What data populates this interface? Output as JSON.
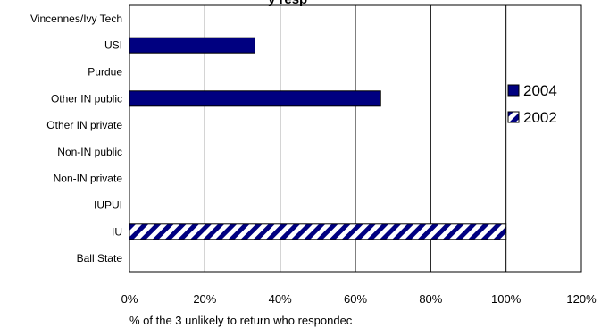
{
  "chart_data": {
    "type": "bar",
    "orientation": "horizontal",
    "title": "y resp",
    "xlabel": "% of the 3 unlikely to return who respondec",
    "ylabel": "",
    "xlim": [
      0,
      120
    ],
    "x_ticks": [
      "0%",
      "20%",
      "40%",
      "60%",
      "80%",
      "100%",
      "120%"
    ],
    "grid": true,
    "legend_position": "right",
    "categories": [
      "Vincennes/Ivy Tech",
      "USI",
      "Purdue",
      "Other IN public",
      "Other IN private",
      "Non-IN public",
      "Non-IN private",
      "IUPUI",
      "IU",
      "Ball State"
    ],
    "series": [
      {
        "name": "2004",
        "color": "#000080",
        "pattern": "solid",
        "values": [
          0,
          33.3,
          0,
          66.7,
          0,
          0,
          0,
          0,
          0,
          0
        ]
      },
      {
        "name": "2002",
        "color": "#000080",
        "pattern": "diagonal-stripe",
        "values": [
          0,
          0,
          0,
          0,
          0,
          0,
          0,
          0,
          100,
          0
        ]
      }
    ]
  }
}
